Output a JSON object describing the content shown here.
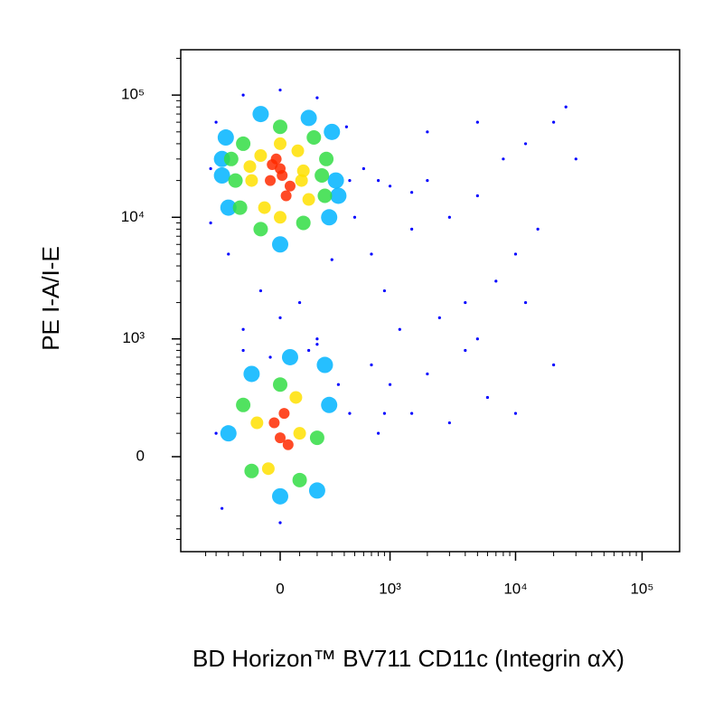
{
  "chart_data": {
    "type": "scatter",
    "xlabel": "BD Horizon™ BV711 CD11c (Integrin αX)",
    "ylabel": "PE I-A/I-E",
    "xscale": "biexponential",
    "yscale": "biexponential",
    "xlim": [
      -820,
      198000
    ],
    "ylim": [
      -640,
      235000
    ],
    "xticks": [
      0,
      {
        "value": 1000,
        "label": "10³"
      },
      {
        "value": 10000,
        "label": "10⁴"
      },
      {
        "value": 100000,
        "label": "10⁵"
      }
    ],
    "yticks": [
      0,
      {
        "value": 1000,
        "label": "10³"
      },
      {
        "value": 10000,
        "label": "10⁴"
      },
      {
        "value": 100000,
        "label": "10⁵"
      }
    ],
    "minor_ticks": [
      -500,
      -400,
      -300,
      -200,
      -100,
      100,
      200,
      300,
      400,
      500,
      600,
      700,
      800,
      900,
      2000,
      3000,
      4000,
      5000,
      6000,
      7000,
      8000,
      9000,
      20000,
      30000,
      40000,
      50000,
      60000,
      70000,
      80000,
      90000,
      200000
    ],
    "series": [
      {
        "color": "#0000ff",
        "x": [
          -450,
          450,
          -400,
          420,
          -200,
          200,
          0,
          -450,
          500,
          -300,
          300,
          -100,
          100,
          0,
          -200,
          200,
          -50,
          150,
          -400,
          450,
          -350,
          350,
          0,
          200,
          -200,
          600,
          800,
          1000,
          1500,
          2000,
          3000,
          5000,
          8000,
          12000,
          20000,
          25000,
          30000,
          15000,
          10000,
          7000,
          4000,
          2500,
          1200,
          900,
          700,
          1500,
          3000,
          6000,
          10000,
          4000,
          2000,
          1000,
          800,
          5000,
          12000,
          20000,
          2000,
          5000,
          700,
          900,
          1500
        ],
        "values": [
          25000,
          20000,
          60000,
          55000,
          100000,
          95000,
          110000,
          9000,
          10000,
          5000,
          4500,
          2500,
          2000,
          1500,
          1200,
          1000,
          700,
          800,
          100,
          200,
          -250,
          400,
          -350,
          900,
          800,
          25000,
          20000,
          18000,
          16000,
          20000,
          10000,
          15000,
          30000,
          40000,
          60000,
          80000,
          30000,
          8000,
          5000,
          3000,
          2000,
          1500,
          1200,
          2500,
          600,
          200,
          150,
          300,
          200,
          800,
          500,
          400,
          100,
          1000,
          2000,
          600,
          50000,
          60000,
          5000,
          200,
          8000
        ]
      },
      {
        "color": "#00b4ff",
        "x": [
          -350,
          330,
          -320,
          300,
          -100,
          150,
          0,
          -300,
          280,
          -350,
          350,
          -300,
          280,
          0,
          -150,
          200,
          250,
          50
        ],
        "values": [
          22000,
          20000,
          45000,
          50000,
          70000,
          65000,
          6000,
          12000,
          10000,
          30000,
          15000,
          100,
          250,
          -180,
          500,
          -150,
          600,
          700
        ]
      },
      {
        "color": "#33dd44",
        "x": [
          -250,
          230,
          -200,
          250,
          0,
          -220,
          180,
          -100,
          120,
          -280,
          260,
          -200,
          200,
          0,
          100,
          -150
        ],
        "values": [
          20000,
          22000,
          40000,
          15000,
          55000,
          12000,
          45000,
          8000,
          9000,
          30000,
          30000,
          250,
          80,
          400,
          -100,
          -60
        ]
      },
      {
        "color": "#ffe000",
        "x": [
          -150,
          120,
          -100,
          150,
          0,
          -80,
          90,
          -160,
          110,
          0,
          -120,
          100,
          -60,
          80
        ],
        "values": [
          20000,
          24000,
          32000,
          14000,
          40000,
          12000,
          35000,
          26000,
          20000,
          10000,
          150,
          100,
          -50,
          300
        ]
      },
      {
        "color": "#ff2a00",
        "x": [
          -50,
          0,
          50,
          -20,
          30,
          10,
          -40,
          0,
          -30,
          40,
          20
        ],
        "values": [
          20000,
          25000,
          18000,
          30000,
          15000,
          22000,
          27000,
          80,
          150,
          50,
          200
        ]
      }
    ]
  }
}
